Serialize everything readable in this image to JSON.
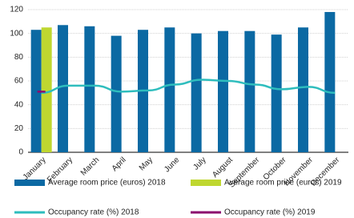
{
  "chart_data": {
    "type": "bar",
    "categories": [
      "January",
      "February",
      "March",
      "April",
      "May",
      "June",
      "July",
      "August",
      "September",
      "October",
      "November",
      "December"
    ],
    "series": [
      {
        "name": "Average room price (euros) 2018",
        "type": "bar",
        "color": "#0b69a3",
        "values": [
          103,
          107,
          106,
          98,
          103,
          105,
          100,
          102,
          102,
          99,
          105,
          118
        ]
      },
      {
        "name": "Average room price (euros) 2019",
        "type": "bar",
        "color": "#bfd730",
        "values": [
          105,
          null,
          null,
          null,
          null,
          null,
          null,
          null,
          null,
          null,
          null,
          null
        ]
      },
      {
        "name": "Occupancy rate (%) 2018",
        "type": "line",
        "color": "#2ebdbd",
        "values": [
          50,
          56,
          56,
          51,
          52,
          57,
          61,
          60,
          57,
          53,
          55,
          50
        ]
      },
      {
        "name": "Occupancy rate (%) 2019",
        "type": "line",
        "color": "#8c0a6e",
        "values": [
          51,
          null,
          null,
          null,
          null,
          null,
          null,
          null,
          null,
          null,
          null,
          null
        ]
      }
    ],
    "ylim": [
      0,
      120
    ],
    "yticks": [
      0,
      20,
      40,
      60,
      80,
      100,
      120
    ],
    "grid": true
  }
}
